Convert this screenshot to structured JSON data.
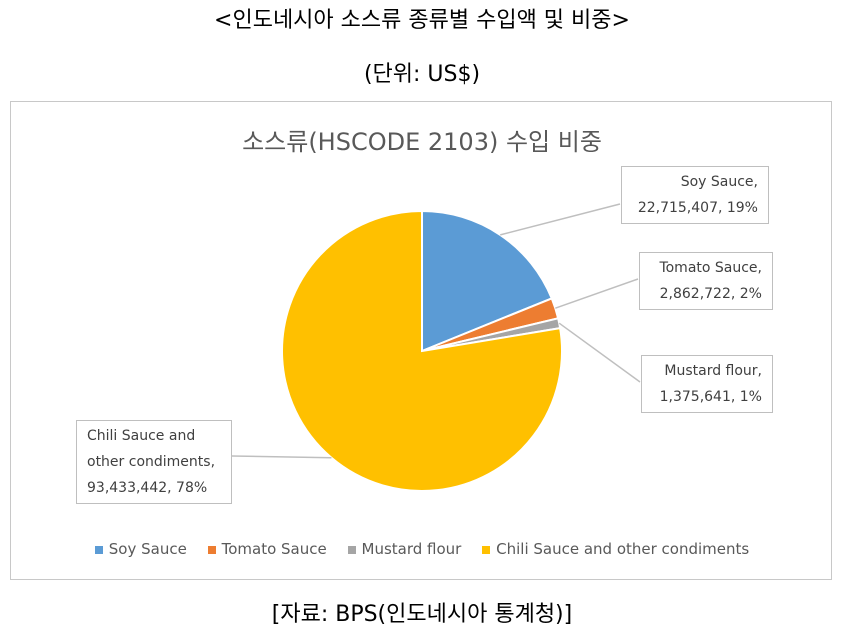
{
  "header": {
    "title": "<인도네시아 소스류 종류별 수입액 및 비중>",
    "unit": "(단위: US$)"
  },
  "footer": {
    "source": "[자료: BPS(인도네시아 통계청)]"
  },
  "chart_data": {
    "type": "pie",
    "title": "소스류(HSCODE 2103) 수입 비중",
    "legend_position": "bottom",
    "slices": [
      {
        "name": "Soy Sauce",
        "value": 22715407,
        "percent": "19%",
        "color": "#5B9BD5",
        "label_lines": [
          "Soy Sauce,",
          "22,715,407, 19%"
        ]
      },
      {
        "name": "Tomato Sauce",
        "value": 2862722,
        "percent": "2%",
        "color": "#ED7D31",
        "label_lines": [
          "Tomato Sauce,",
          "2,862,722, 2%"
        ]
      },
      {
        "name": "Mustard flour",
        "value": 1375641,
        "percent": "1%",
        "color": "#A5A5A5",
        "label_lines": [
          "Mustard flour,",
          "1,375,641, 1%"
        ]
      },
      {
        "name": "Chili Sauce and other condiments",
        "value": 93433442,
        "percent": "78%",
        "color": "#FFC000",
        "label_lines": [
          "Chili Sauce and",
          "other condiments,",
          "93,433,442, 78%"
        ]
      }
    ]
  }
}
